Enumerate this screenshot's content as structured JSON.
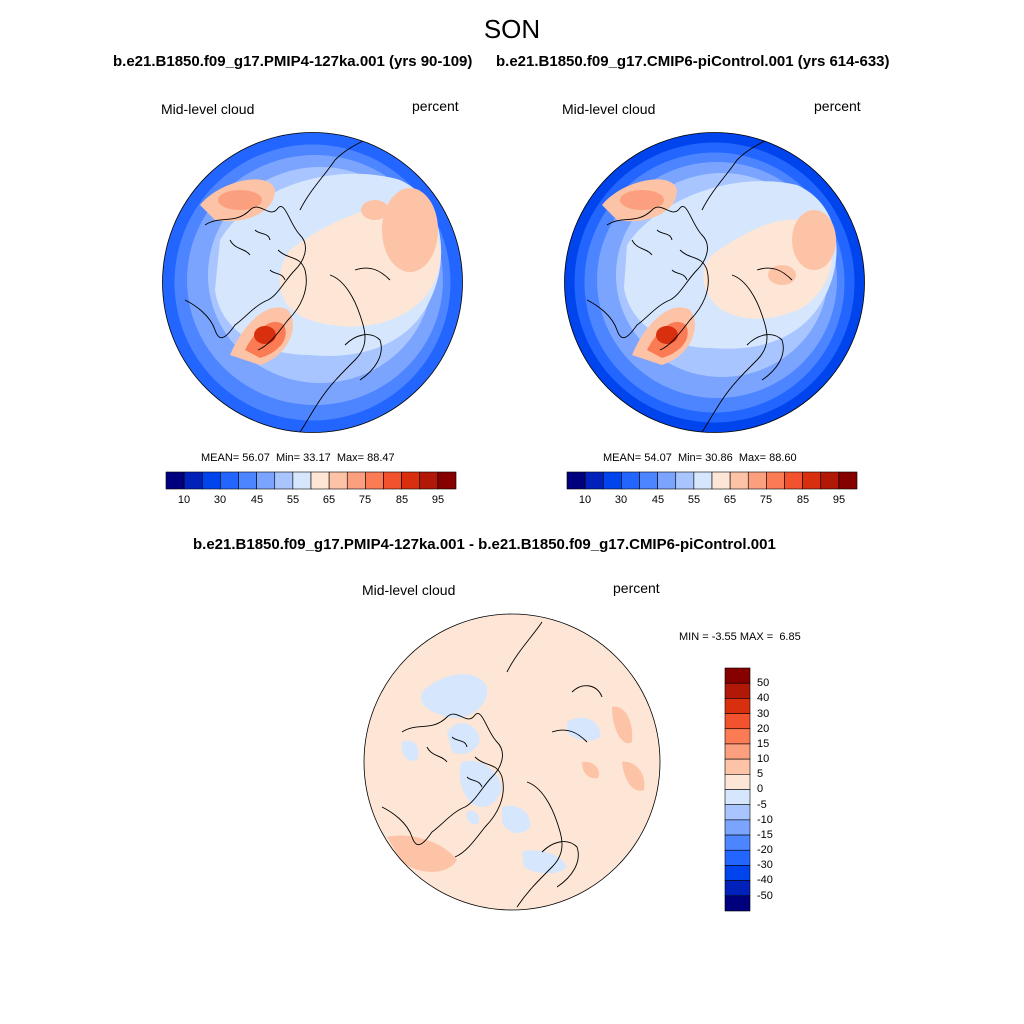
{
  "season": "SON",
  "panels": [
    {
      "title": "b.e21.B1850.f09_g17.PMIP4-127ka.001 (yrs 90-109)",
      "variable": "Mid-level cloud",
      "units": "percent",
      "stats": {
        "mean_label": "MEAN=",
        "mean": "56.07",
        "min_label": "Min=",
        "min": "33.17",
        "max_label": "Max=",
        "max": "88.47"
      }
    },
    {
      "title": "b.e21.B1850.f09_g17.CMIP6-piControl.001 (yrs 614-633)",
      "variable": "Mid-level cloud",
      "units": "percent",
      "stats": {
        "mean_label": "MEAN=",
        "mean": "54.07",
        "min_label": "Min=",
        "min": "30.86",
        "max_label": "Max=",
        "max": "88.60"
      }
    }
  ],
  "abs_colorbar": {
    "tick_labels": [
      "10",
      "30",
      "45",
      "55",
      "65",
      "75",
      "85",
      "95"
    ],
    "colors": [
      "#00007f",
      "#0022bb",
      "#0044ee",
      "#2266ff",
      "#4c85ff",
      "#7ba4ff",
      "#a9c5ff",
      "#d6e6fd",
      "#fde6d6",
      "#fdc3a6",
      "#fc9f7f",
      "#fb7b55",
      "#f2522e",
      "#d8300f",
      "#b21808",
      "#870000"
    ]
  },
  "diff_panel": {
    "title": "b.e21.B1850.f09_g17.PMIP4-127ka.001 - b.e21.B1850.f09_g17.CMIP6-piControl.001",
    "variable": "Mid-level cloud",
    "units": "percent",
    "stats": {
      "min_label": "MIN =",
      "min": "-3.55",
      "max_label": "MAX =",
      "max": "6.85"
    },
    "colorbar": {
      "tick_labels": [
        "50",
        "40",
        "30",
        "20",
        "15",
        "10",
        "5",
        "0",
        "-5",
        "-10",
        "-15",
        "-20",
        "-30",
        "-40",
        "-50"
      ],
      "colors": [
        "#870000",
        "#b21808",
        "#d8300f",
        "#f2522e",
        "#fb7b55",
        "#fc9f7f",
        "#fdc3a6",
        "#fde6d6",
        "#d6e6fd",
        "#a9c5ff",
        "#7ba4ff",
        "#4c85ff",
        "#2266ff",
        "#0044ee",
        "#0022bb",
        "#00007f"
      ]
    }
  }
}
